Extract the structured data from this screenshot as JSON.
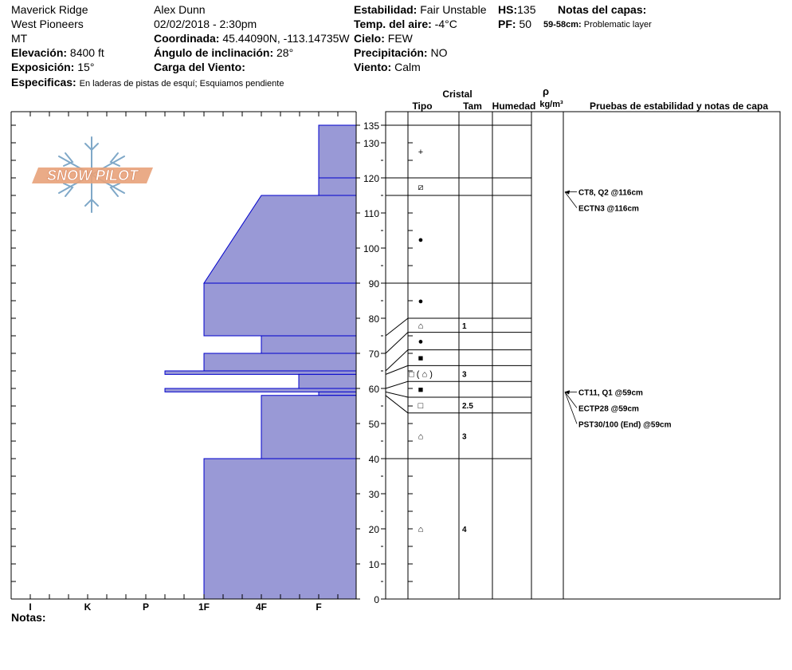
{
  "header": {
    "location": "Maverick Ridge",
    "range": "West Pioneers",
    "state": "MT",
    "observer": "Alex Dunn",
    "datetime": "02/02/2018 - 2:30pm",
    "coordinate_label": "Coordinada:",
    "coordinate_value": "45.44090N, -113.14735W",
    "elevation_label": "Elevación:",
    "elevation_value": "8400 ft",
    "aspect_label": "Exposición:",
    "aspect_value": "15°",
    "slope_label": "Ángulo de inclinación:",
    "slope_value": "28°",
    "wind_load_label": "Carga del Viento:",
    "wind_load_value": "",
    "specifics_label": "Especificas:",
    "specifics_value": "En laderas de pistas de esquí; Esquiamos pendiente",
    "stability_label": "Estabilidad:",
    "stability_value": "Fair Unstable",
    "hs_label": "HS:",
    "hs_value": "135",
    "air_temp_label": "Temp. del aire:",
    "air_temp_value": "-4°C",
    "pf_label": "PF:",
    "pf_value": "50",
    "sky_label": "Cielo:",
    "sky_value": "FEW",
    "precip_label": "Precipitación:",
    "precip_value": "NO",
    "wind_label": "Viento:",
    "wind_value": "Calm",
    "layer_notes_label": "Notas del capas:",
    "layer_notes_range": "59-58cm:",
    "layer_notes_text": "Problematic layer",
    "notes_label": "Notas:"
  },
  "columns": {
    "crystal": "Cristal",
    "type": "Tipo",
    "size": "Tam",
    "humidity": "Humedad",
    "rho": "ρ",
    "density_unit": "kg/m³",
    "tests": "Pruebas de estabilidad y notas de capa"
  },
  "logo_text": "SNOW PILOT",
  "chart_data": {
    "type": "snow_profile",
    "y_axis": {
      "label": "",
      "range": [
        0,
        135
      ],
      "ticks": [
        0,
        10,
        20,
        30,
        40,
        50,
        60,
        70,
        80,
        90,
        100,
        110,
        120,
        130,
        135
      ]
    },
    "hardness_scale": [
      "I",
      "K",
      "P",
      "1F",
      "4F",
      "F"
    ],
    "hardness_layers": [
      {
        "bottom": 120,
        "top": 135,
        "hardness_bottom": "F",
        "hardness_top": "F"
      },
      {
        "bottom": 115,
        "top": 120,
        "hardness_bottom": "F",
        "hardness_top": "F"
      },
      {
        "bottom": 90,
        "top": 115,
        "hardness_bottom": "1F",
        "hardness_top": "4F"
      },
      {
        "bottom": 75,
        "top": 90,
        "hardness_bottom": "1F",
        "hardness_top": "1F"
      },
      {
        "bottom": 70,
        "top": 75,
        "hardness_bottom": "4F",
        "hardness_top": "4F"
      },
      {
        "bottom": 65,
        "top": 70,
        "hardness_bottom": "1F",
        "hardness_top": "1F"
      },
      {
        "bottom": 64,
        "top": 65,
        "hardness_bottom": "P+",
        "hardness_top": "P+"
      },
      {
        "bottom": 60,
        "top": 64,
        "hardness_bottom": "4F+",
        "hardness_top": "4F+"
      },
      {
        "bottom": 59,
        "top": 60,
        "hardness_bottom": "P+",
        "hardness_top": "P+"
      },
      {
        "bottom": 58,
        "top": 59,
        "hardness_bottom": "F",
        "hardness_top": "F"
      },
      {
        "bottom": 40,
        "top": 58,
        "hardness_bottom": "4F",
        "hardness_top": "4F"
      },
      {
        "bottom": 0,
        "top": 40,
        "hardness_bottom": "1F",
        "hardness_top": "1F"
      }
    ],
    "layer_boundaries": [
      135,
      120,
      115,
      90,
      80,
      76,
      71,
      66.5,
      62,
      57.5,
      53,
      40
    ],
    "crystal_rows": [
      {
        "bottom": 120,
        "top": 135,
        "symbol": "+",
        "size": ""
      },
      {
        "bottom": 115,
        "top": 120,
        "symbol": "⧄",
        "size": ""
      },
      {
        "bottom": 90,
        "top": 115,
        "symbol": "●",
        "size": ""
      },
      {
        "bottom": 80,
        "top": 90,
        "symbol": "●",
        "size": ""
      },
      {
        "bottom": 76,
        "top": 80,
        "symbol": "⌂",
        "size": "1"
      },
      {
        "bottom": 71,
        "top": 76,
        "symbol": "●",
        "size": ""
      },
      {
        "bottom": 66.5,
        "top": 71,
        "symbol": "■",
        "size": ""
      },
      {
        "bottom": 62,
        "top": 66.5,
        "symbol": "□ ( ⌂ )",
        "size": "3"
      },
      {
        "bottom": 57.5,
        "top": 62,
        "symbol": "■",
        "size": ""
      },
      {
        "bottom": 53,
        "top": 57.5,
        "symbol": "□",
        "size": "2.5"
      },
      {
        "bottom": 40,
        "top": 53,
        "symbol": "⌂",
        "size": "3"
      },
      {
        "bottom": 0,
        "top": 40,
        "symbol": "⌂",
        "size": "4"
      }
    ],
    "connector_depths": [
      135,
      120,
      115,
      90,
      75,
      70,
      65,
      64,
      60,
      59,
      58,
      40
    ],
    "stability_tests": [
      {
        "depth": 116,
        "label": "CT8, Q2 @116cm"
      },
      {
        "depth": 116,
        "label": "ECTN3 @116cm"
      },
      {
        "depth": 59,
        "label": "CT11, Q1 @59cm"
      },
      {
        "depth": 59,
        "label": "ECTP28 @59cm"
      },
      {
        "depth": 59,
        "label": "PST30/100 (End) @59cm"
      }
    ],
    "colors": {
      "layer_fill": "#9999d6",
      "layer_edge": "#0000cc",
      "logo_orange": "#e8a27a",
      "logo_blue": "#7fa8c8"
    }
  }
}
